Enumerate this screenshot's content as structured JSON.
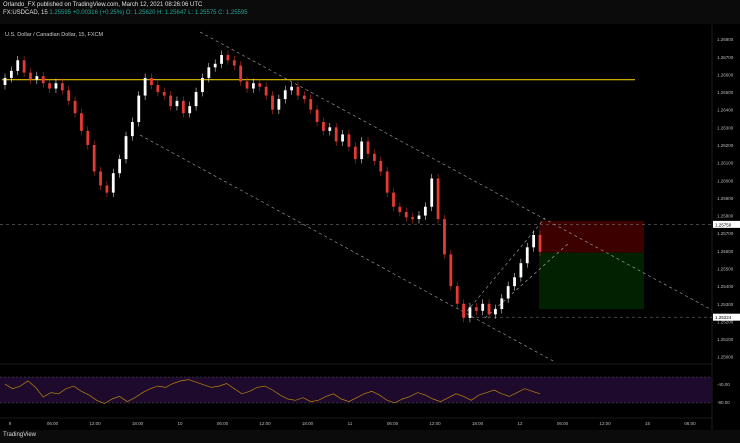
{
  "header": {
    "line1": "Orlando_FX published on TradingView.com, March 12, 2021 08:26:06 UTC",
    "line2_prefix": "FX:USDCAD, 15 ",
    "line2_price": "1.25595",
    "line2_change": "+0.00316 (+0.25%)",
    "line2_ohlc": "O: 1.25620  H: 1.25647  L: 1.25575  C: 1.25595"
  },
  "symbol_title": "U.S. Dollar / Canadian Dollar, 15, FXCM",
  "footer": {
    "logo_text": "TradingView"
  },
  "colors": {
    "up": "#ffffff",
    "down": "#e53935",
    "resistance": "#e5c100",
    "stop_zone": "#3d0000",
    "target_zone": "#002200",
    "oscillator_band": "#1e0a2c",
    "oscillator_line": "#b8860b"
  },
  "chart_data": {
    "type": "candlestick",
    "title": "U.S. Dollar / Canadian Dollar, 15, FXCM",
    "yticks": [
      "1.26800",
      "1.26700",
      "1.26600",
      "1.26500",
      "1.26400",
      "1.26300",
      "1.26200",
      "1.26100",
      "1.26000",
      "1.25900",
      "1.25800",
      "1.25700",
      "1.25600",
      "1.25500",
      "1.25400",
      "1.25300",
      "1.25200",
      "1.25100",
      "1.25000"
    ],
    "ylim": [
      1.2497,
      1.2688
    ],
    "xticks": [
      "9",
      "06:00",
      "12:00",
      "18:00",
      "10",
      "06:00",
      "12:00",
      "18:00",
      "11",
      "06:00",
      "12:00",
      "18:00",
      "12",
      "06:00",
      "12:00",
      "15",
      "06:00"
    ],
    "price_labels": [
      "1.25750",
      "1.25224"
    ],
    "close_path": [
      1.2658,
      1.2662,
      1.2668,
      1.2661,
      1.2657,
      1.2659,
      1.2655,
      1.2652,
      1.2655,
      1.2651,
      1.2645,
      1.2638,
      1.2628,
      1.262,
      1.2605,
      1.2597,
      1.2593,
      1.2604,
      1.2612,
      1.2625,
      1.2633,
      1.2648,
      1.2658,
      1.2654,
      1.265,
      1.2648,
      1.2642,
      1.2645,
      1.2638,
      1.2642,
      1.265,
      1.2658,
      1.2664,
      1.2666,
      1.2671,
      1.2668,
      1.2665,
      1.2656,
      1.2652,
      1.2655,
      1.2653,
      1.2648,
      1.264,
      1.2646,
      1.2651,
      1.2653,
      1.2648,
      1.2646,
      1.264,
      1.2633,
      1.2628,
      1.263,
      1.2622,
      1.2626,
      1.2619,
      1.2612,
      1.2622,
      1.2615,
      1.2611,
      1.2605,
      1.2593,
      1.2585,
      1.2582,
      1.2579,
      1.2578,
      1.258,
      1.2585,
      1.2601,
      1.2578,
      1.2558,
      1.254,
      1.253,
      1.2522,
      1.2528,
      1.2526,
      1.253,
      1.2524,
      1.2527,
      1.2533,
      1.254,
      1.2545,
      1.2553,
      1.2562,
      1.2569,
      1.25595
    ],
    "resistance_level": 1.2657,
    "stop_zone": [
      1.2559,
      1.2577
    ],
    "target_zone": [
      1.2527,
      1.2559
    ],
    "oscillator": {
      "yticks": [
        "-40.00",
        "-80.00"
      ],
      "values": [
        -55,
        -62,
        -58,
        -50,
        -60,
        -75,
        -68,
        -70,
        -62,
        -58,
        -66,
        -72,
        -80,
        -85,
        -78,
        -74,
        -82,
        -76,
        -68,
        -62,
        -58,
        -60,
        -54,
        -50,
        -48,
        -52,
        -56,
        -60,
        -58,
        -54,
        -62,
        -70,
        -66,
        -60,
        -58,
        -64,
        -72,
        -78,
        -80,
        -76,
        -82,
        -80,
        -74,
        -70,
        -78,
        -82,
        -76,
        -70,
        -66,
        -72,
        -80,
        -84,
        -78,
        -74,
        -68,
        -72,
        -78,
        -82,
        -76,
        -70,
        -74,
        -80,
        -72,
        -68,
        -64,
        -70,
        -74,
        -68,
        -62,
        -66,
        -70
      ]
    }
  }
}
